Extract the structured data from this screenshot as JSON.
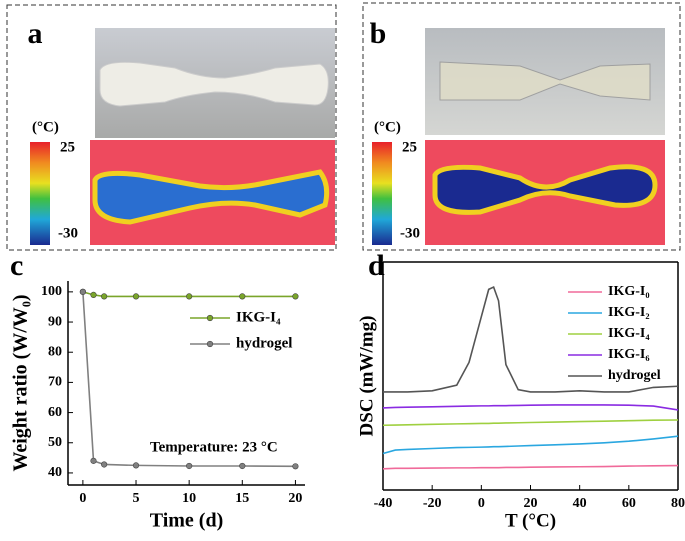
{
  "panels": [
    {
      "label": "a",
      "colorbar": {
        "unit": "(°C)",
        "max": "25",
        "min": "-30"
      }
    },
    {
      "label": "b",
      "colorbar": {
        "unit": "(°C)",
        "max": "25",
        "min": "-30"
      }
    }
  ],
  "chart_data": [
    {
      "type": "line",
      "panel_label": "c",
      "xlabel": "Time (d)",
      "ylabel": "Weight ratio (W/W₀)",
      "annotation": "Temperature: 23 °C",
      "markers": true,
      "x": [
        0,
        1,
        2,
        5,
        10,
        15,
        20
      ],
      "series": [
        {
          "name": "IKG-I₄",
          "color": "#7aa52a",
          "values": [
            100,
            99,
            98.5,
            98.5,
            98.5,
            98.5,
            98.5
          ]
        },
        {
          "name": "hydrogel",
          "color": "#808080",
          "values": [
            100,
            44,
            42.8,
            42.5,
            42.3,
            42.3,
            42.2
          ]
        }
      ],
      "xlim": [
        -1.4,
        20.9
      ],
      "xticks": [
        0,
        5,
        10,
        15,
        20
      ],
      "ylim": [
        36,
        103.6
      ],
      "yticks": [
        40,
        50,
        60,
        70,
        80,
        90,
        100
      ]
    },
    {
      "type": "line",
      "panel_label": "d",
      "xlabel": "T (°C)",
      "ylabel": "DSC (mW/mg)",
      "markers": false,
      "x": [
        -40,
        -35,
        -30,
        -20,
        -10,
        -5,
        0,
        3,
        5,
        7,
        10,
        15,
        20,
        30,
        40,
        50,
        60,
        70,
        80
      ],
      "series": [
        {
          "name": "IKG-I₀",
          "color": "#f06a9a",
          "values": [
            0.93,
            0.95,
            0.95,
            0.96,
            0.97,
            0.97,
            0.98,
            0.98,
            0.98,
            0.98,
            0.99,
            0.99,
            1.0,
            1.01,
            1.02,
            1.03,
            1.05,
            1.06,
            1.07
          ]
        },
        {
          "name": "IKG-I₂",
          "color": "#2aa7e0",
          "values": [
            1.6,
            1.75,
            1.78,
            1.82,
            1.86,
            1.87,
            1.88,
            1.89,
            1.9,
            1.9,
            1.91,
            1.93,
            1.95,
            1.98,
            2.02,
            2.07,
            2.14,
            2.24,
            2.36
          ]
        },
        {
          "name": "IKG-I₄",
          "color": "#9fd040",
          "values": [
            2.84,
            2.85,
            2.86,
            2.88,
            2.9,
            2.91,
            2.92,
            2.92,
            2.93,
            2.93,
            2.94,
            2.95,
            2.96,
            2.98,
            3.0,
            3.02,
            3.04,
            3.06,
            3.07
          ]
        },
        {
          "name": "IKG-I₆",
          "color": "#8a2be2",
          "values": [
            3.6,
            3.62,
            3.63,
            3.65,
            3.67,
            3.68,
            3.69,
            3.69,
            3.7,
            3.7,
            3.7,
            3.71,
            3.72,
            3.73,
            3.73,
            3.73,
            3.72,
            3.68,
            3.51
          ]
        },
        {
          "name": "hydrogel",
          "color": "#555555",
          "values": [
            4.3,
            4.3,
            4.3,
            4.35,
            4.6,
            5.6,
            7.6,
            8.8,
            8.9,
            8.3,
            5.5,
            4.4,
            4.3,
            4.3,
            4.35,
            4.3,
            4.3,
            4.5,
            4.55
          ]
        }
      ],
      "xlim": [
        -40,
        80
      ],
      "xticks": [
        -40,
        -20,
        0,
        20,
        40,
        60,
        80
      ],
      "ylim": [
        0,
        10
      ]
    }
  ]
}
